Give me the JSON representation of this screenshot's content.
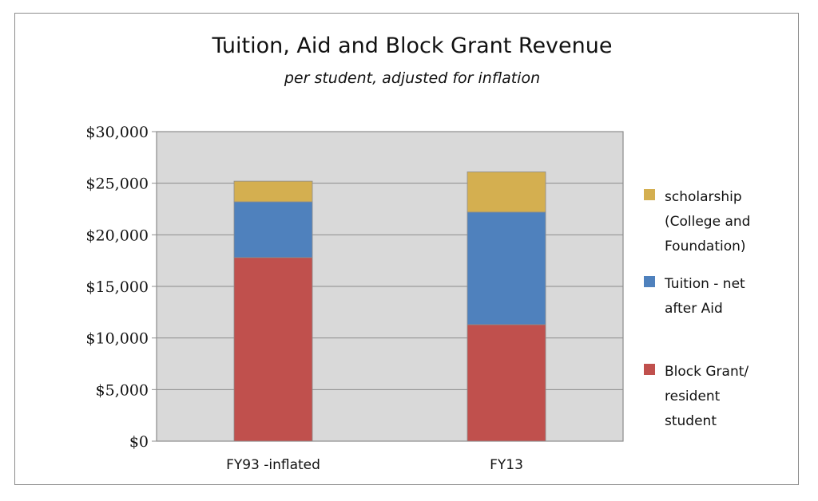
{
  "chart_data": {
    "type": "bar",
    "stacked": true,
    "title": "Tuition, Aid and Block Grant Revenue",
    "subtitle": "per student, adjusted for inflation",
    "categories": [
      "FY93 -inflated",
      "FY13"
    ],
    "series": [
      {
        "name": "Block Grant/ resident student",
        "legend_lines": [
          "Block Grant/",
          "resident",
          "student"
        ],
        "color": "#c0504d",
        "values": [
          17800,
          11300
        ]
      },
      {
        "name": "Tuition - net after Aid",
        "legend_lines": [
          "Tuition - net",
          "after Aid"
        ],
        "color": "#4f81bd",
        "values": [
          5400,
          10900
        ]
      },
      {
        "name": "scholarship (College and Foundation)",
        "legend_lines": [
          "scholarship",
          "(College and",
          "Foundation)"
        ],
        "color": "#d4af50",
        "values": [
          2000,
          3900
        ]
      }
    ],
    "ylim": [
      0,
      30000
    ],
    "yticks": [
      0,
      5000,
      10000,
      15000,
      20000,
      25000,
      30000
    ],
    "ytick_labels": [
      "$0",
      "$5,000",
      "$10,000",
      "$15,000",
      "$20,000",
      "$25,000",
      "$30,000"
    ],
    "grid": true,
    "plot_background": "#d9d9d9",
    "legend_position": "right"
  }
}
